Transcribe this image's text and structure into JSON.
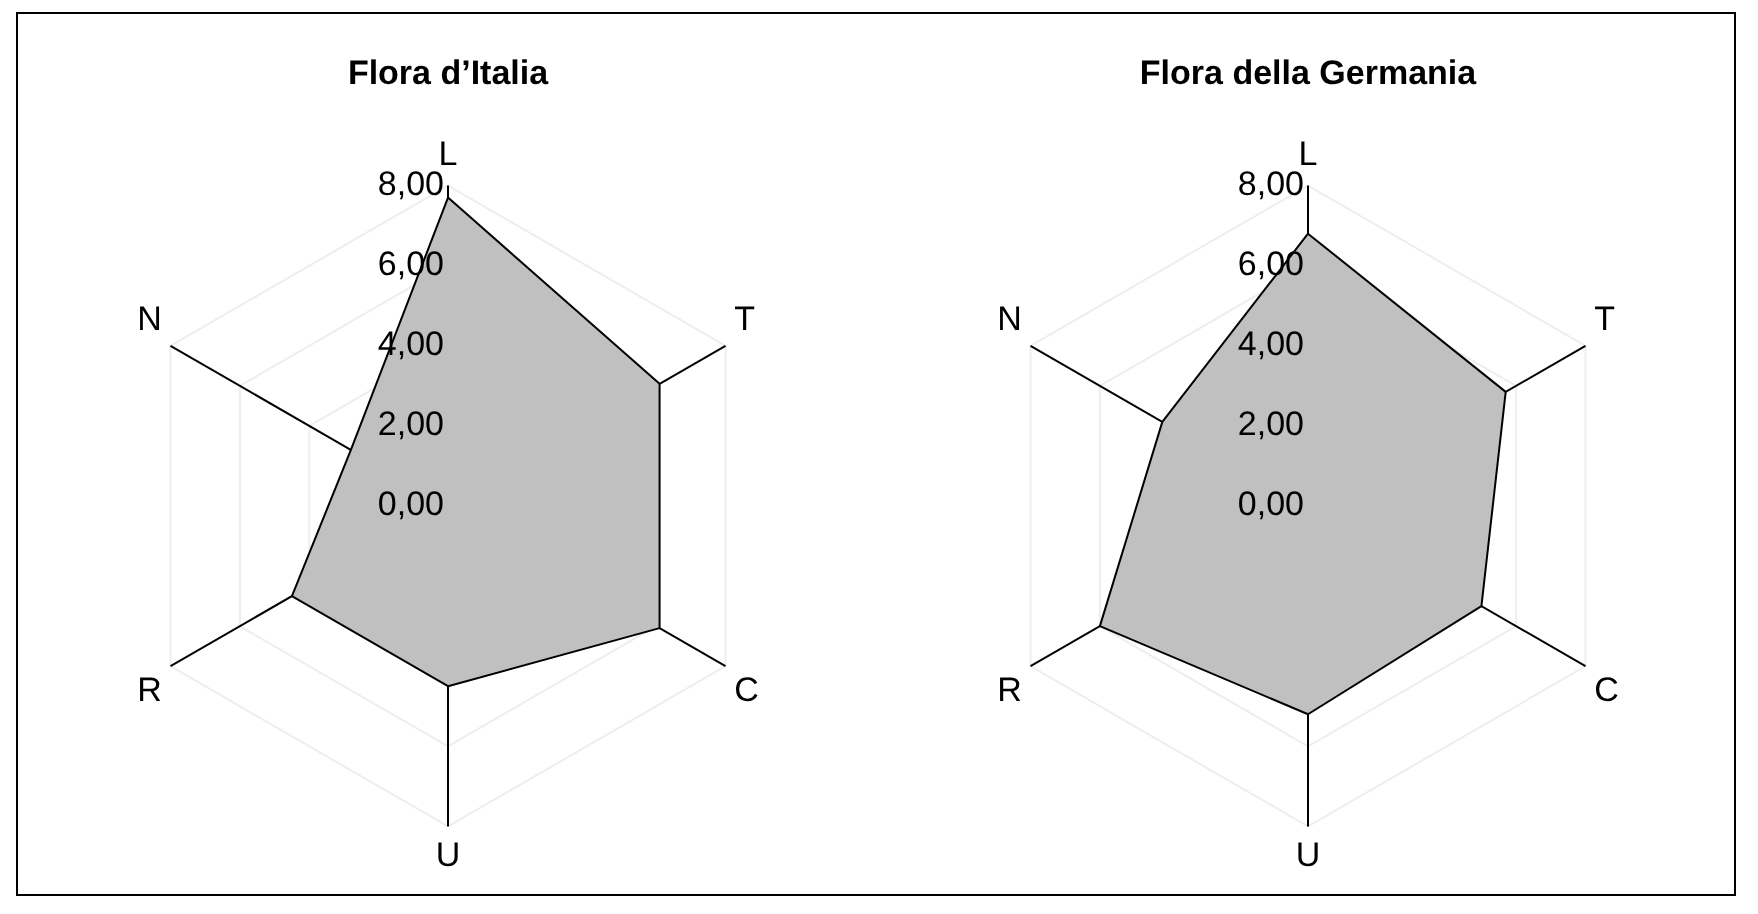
{
  "chart_data": [
    {
      "type": "radar",
      "title": "Flora d’Italia",
      "categories": [
        "L",
        "T",
        "C",
        "U",
        "R",
        "N"
      ],
      "series": [
        {
          "color": "#c0c0c0",
          "values": [
            7.7,
            6.1,
            6.1,
            4.5,
            4.5,
            2.8
          ]
        }
      ],
      "ylim": [
        0,
        8
      ],
      "yticks": [
        {
          "value": 0,
          "label": "0,00"
        },
        {
          "value": 2,
          "label": "2,00"
        },
        {
          "value": 4,
          "label": "4,00"
        },
        {
          "value": 6,
          "label": "6,00"
        },
        {
          "value": 8,
          "label": "8,00"
        }
      ],
      "grid": true,
      "legend": false,
      "marker": "none"
    },
    {
      "type": "radar",
      "title": "Flora della Germania",
      "categories": [
        "L",
        "T",
        "C",
        "U",
        "R",
        "N"
      ],
      "series": [
        {
          "color": "#c0c0c0",
          "values": [
            6.8,
            5.7,
            5.0,
            5.2,
            6.0,
            4.2
          ]
        }
      ],
      "ylim": [
        0,
        8
      ],
      "yticks": [
        {
          "value": 0,
          "label": "0,00"
        },
        {
          "value": 2,
          "label": "2,00"
        },
        {
          "value": 4,
          "label": "4,00"
        },
        {
          "value": 6,
          "label": "6,00"
        },
        {
          "value": 8,
          "label": "8,00"
        }
      ],
      "grid": true,
      "legend": false,
      "marker": "none"
    }
  ]
}
